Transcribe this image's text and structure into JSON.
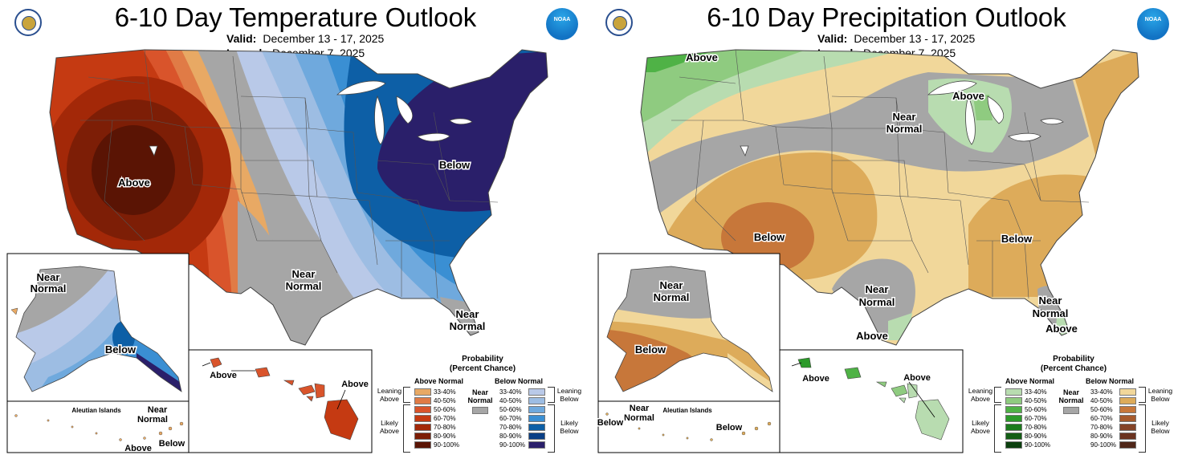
{
  "temperature": {
    "title": "6-10 Day Temperature Outlook",
    "valid_label": "Valid:",
    "valid_value": "December 13 - 17, 2025",
    "issued_label": "Issued:",
    "issued_value": "December 7, 2025",
    "map_labels": {
      "above_west": "Above",
      "below_east": "Below",
      "near_normal_tx": [
        "Near",
        "Normal"
      ],
      "near_normal_fl": [
        "Near",
        "Normal"
      ],
      "ak_near_normal": [
        "Near",
        "Normal"
      ],
      "ak_below": "Below",
      "aleutian_islands": "Aleutian Islands",
      "aleutian_near_normal": [
        "Near",
        "Normal"
      ],
      "aleutian_below": "Below",
      "aleutian_above": "Above",
      "hi_above_left": "Above",
      "hi_above_right": "Above"
    },
    "colors": {
      "above": [
        "#e8a964",
        "#e07b46",
        "#d9542b",
        "#c53a12",
        "#a32808",
        "#7d1e06",
        "#5a1404"
      ],
      "below": [
        "#b9c9e8",
        "#9dbde3",
        "#6fa9dd",
        "#3a8fd3",
        "#0d5fa6",
        "#0a3f86",
        "#2a1f6a"
      ],
      "near_normal": "#a6a6a6"
    }
  },
  "precipitation": {
    "title": "6-10 Day Precipitation Outlook",
    "valid_label": "Valid:",
    "valid_value": "December 13 - 17, 2025",
    "issued_label": "Issued:",
    "issued_value": "December 7, 2025",
    "map_labels": {
      "above_nw": "Above",
      "above_great_lakes": "Above",
      "near_normal_north": [
        "Near",
        "Normal"
      ],
      "below_southwest": "Below",
      "below_southeast": "Below",
      "near_normal_tx": [
        "Near",
        "Normal"
      ],
      "above_tx_coast": "Above",
      "near_normal_fl": [
        "Near",
        "Normal"
      ],
      "above_fl": "Above",
      "ak_near_normal": [
        "Near",
        "Normal"
      ],
      "ak_below": "Below",
      "aleutian_islands": "Aleutian Islands",
      "aleutian_near_normal": [
        "Near",
        "Normal"
      ],
      "aleutian_below_left": "Below",
      "aleutian_below_right": "Below",
      "hi_above_left": "Above",
      "hi_above_right": "Above"
    },
    "colors": {
      "above": [
        "#b8dcb0",
        "#8fcb80",
        "#4fb246",
        "#2c9a2a",
        "#1c7b1d",
        "#145e15",
        "#0b3f0e"
      ],
      "below": [
        "#f1d79a",
        "#ddab5a",
        "#c7773a",
        "#a65a2c",
        "#844327",
        "#6b3320",
        "#4f2618"
      ],
      "near_normal": "#a6a6a6"
    }
  },
  "legend": {
    "title": "Probability",
    "subtitle": "(Percent Chance)",
    "above_normal": "Above Normal",
    "below_normal": "Below Normal",
    "near_normal": [
      "Near",
      "Normal"
    ],
    "ranges": [
      "33-40%",
      "40-50%",
      "50-60%",
      "60-70%",
      "70-80%",
      "80-90%",
      "90-100%"
    ],
    "leaning_above": [
      "Leaning",
      "Above"
    ],
    "likely_above": [
      "Likely",
      "Above"
    ],
    "leaning_below": [
      "Leaning",
      "Below"
    ],
    "likely_below": [
      "Likely",
      "Below"
    ]
  }
}
